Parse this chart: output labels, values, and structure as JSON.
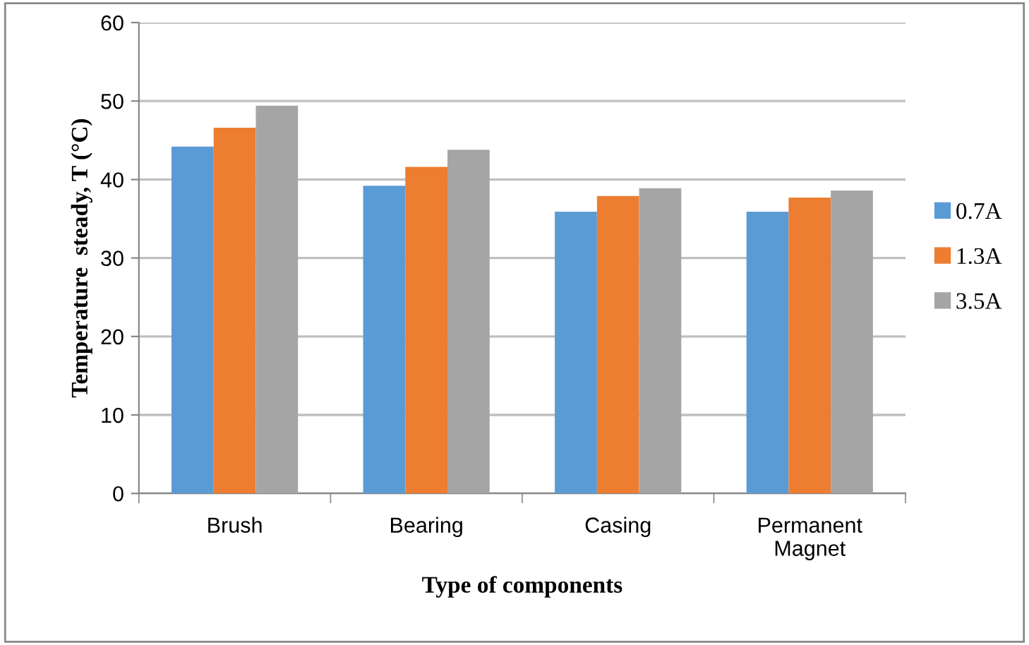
{
  "chart_data": {
    "type": "bar",
    "xlabel": "Type of components",
    "ylabel": "Temperature  steady, T (°C)",
    "categories": [
      "Brush",
      "Bearing",
      "Casing",
      "Permanent\nMagnet"
    ],
    "series": [
      {
        "name": "0.7A",
        "color": "#5b9bd5",
        "values": [
          44.2,
          39.2,
          35.9,
          35.9
        ]
      },
      {
        "name": "1.3A",
        "color": "#ed7d31",
        "values": [
          46.6,
          41.6,
          37.9,
          37.7
        ]
      },
      {
        "name": "3.5A",
        "color": "#a5a5a5",
        "values": [
          49.4,
          43.8,
          38.9,
          38.6
        ]
      }
    ],
    "ylim": [
      0,
      60
    ],
    "yticks": [
      0,
      10,
      20,
      30,
      40,
      50,
      60
    ],
    "grid": "y",
    "legend": "right"
  }
}
